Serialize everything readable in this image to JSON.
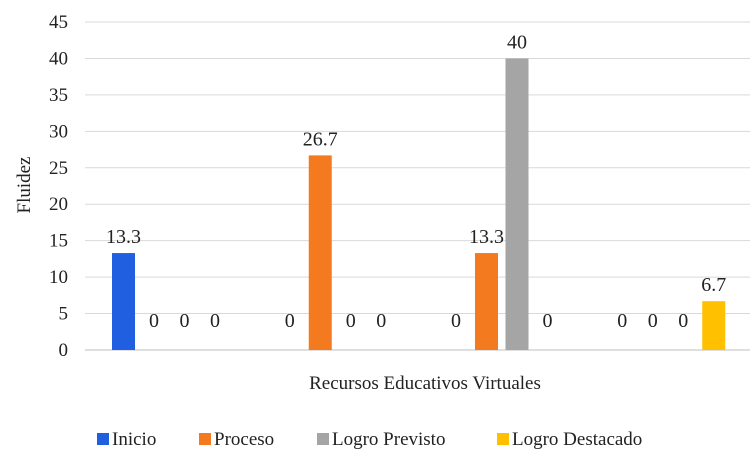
{
  "chart_data": {
    "type": "bar",
    "xlabel": "Recursos Educativos Virtuales",
    "ylabel": "Fluidez",
    "ylim": [
      0,
      45
    ],
    "yticks": [
      0,
      5,
      10,
      15,
      20,
      25,
      30,
      35,
      40,
      45
    ],
    "grid": true,
    "legend_position": "bottom",
    "groups": 4,
    "series": [
      {
        "name": "Inicio",
        "color": "#1f5fe0",
        "values": [
          13.3,
          0,
          0,
          0
        ]
      },
      {
        "name": "Proceso",
        "color": "#f47a20",
        "values": [
          0,
          26.7,
          13.3,
          0
        ]
      },
      {
        "name": "Logro Previsto",
        "color": "#a5a5a5",
        "values": [
          0,
          0,
          40,
          0
        ]
      },
      {
        "name": "Logro Destacado",
        "color": "#ffc000",
        "values": [
          0,
          0,
          0,
          6.7
        ]
      }
    ]
  }
}
